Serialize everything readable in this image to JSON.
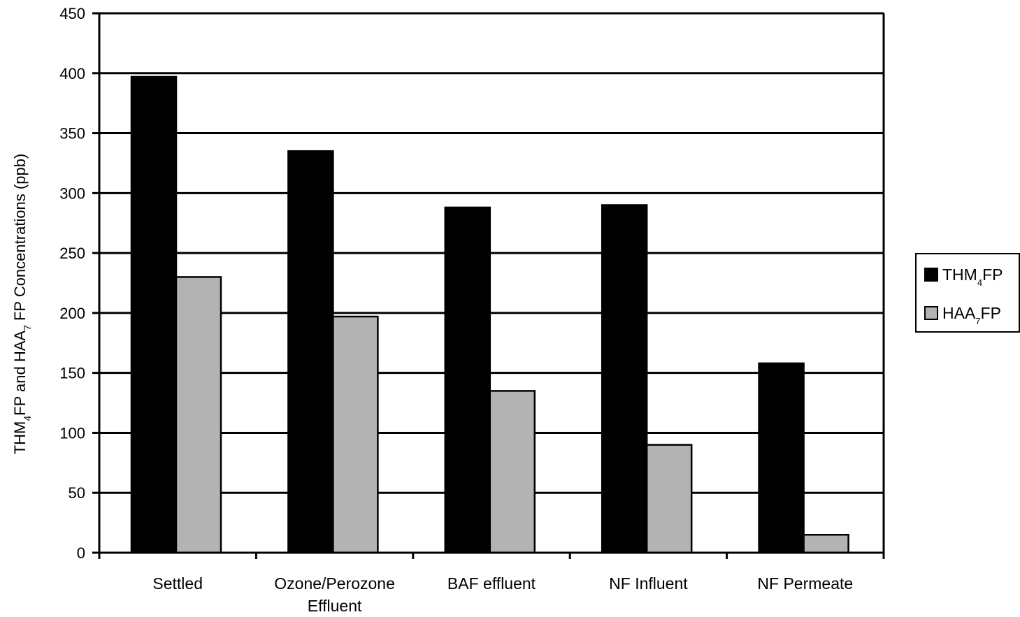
{
  "chart_data": {
    "type": "bar",
    "title": "",
    "xlabel": "",
    "ylabel": {
      "parts": [
        {
          "text": "THM",
          "sub": false
        },
        {
          "text": "4",
          "sub": true
        },
        {
          "text": "FP  and HAA",
          "sub": false
        },
        {
          "text": "7",
          "sub": true
        },
        {
          "text": " FP Concentrations  (ppb)",
          "sub": false
        }
      ]
    },
    "ylim": [
      0,
      450
    ],
    "yticks": [
      0,
      50,
      100,
      150,
      200,
      250,
      300,
      350,
      400,
      450
    ],
    "grid": true,
    "legend_position": "right",
    "categories": [
      [
        "Settled"
      ],
      [
        "Ozone/Perozone",
        "Effluent"
      ],
      [
        "BAF effluent"
      ],
      [
        "NF Influent"
      ],
      [
        "NF Permeate"
      ]
    ],
    "series": [
      {
        "name": "THM4FP",
        "legend_parts": [
          {
            "text": "THM",
            "sub": false
          },
          {
            "text": "4",
            "sub": true
          },
          {
            "text": "FP",
            "sub": false
          }
        ],
        "color": "#000000",
        "values": [
          397,
          335,
          288,
          290,
          158
        ]
      },
      {
        "name": "HAA7FP",
        "legend_parts": [
          {
            "text": "HAA",
            "sub": false
          },
          {
            "text": "7",
            "sub": true
          },
          {
            "text": "FP",
            "sub": false
          }
        ],
        "color": "#b3b3b3",
        "values": [
          230,
          197,
          135,
          90,
          15
        ]
      }
    ]
  }
}
